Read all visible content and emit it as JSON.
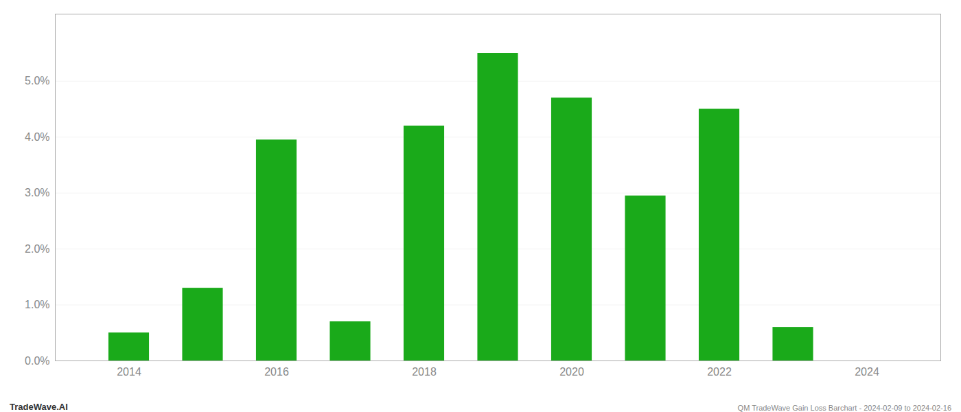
{
  "chart_data": {
    "type": "bar",
    "x": [
      2014,
      2015,
      2016,
      2017,
      2018,
      2019,
      2020,
      2021,
      2022,
      2023
    ],
    "values": [
      0.005,
      0.013,
      0.0395,
      0.007,
      0.042,
      0.055,
      0.047,
      0.0295,
      0.045,
      0.006
    ],
    "color": "#1aaa1a",
    "xlim": [
      2013,
      2025
    ],
    "xticks": [
      2014,
      2016,
      2018,
      2020,
      2022,
      2024
    ],
    "ylim": [
      0,
      0.062
    ],
    "yticks": [
      {
        "value": 0.0,
        "label": "0.0%"
      },
      {
        "value": 0.01,
        "label": "1.0%"
      },
      {
        "value": 0.02,
        "label": "2.0%"
      },
      {
        "value": 0.03,
        "label": "3.0%"
      },
      {
        "value": 0.04,
        "label": "4.0%"
      },
      {
        "value": 0.05,
        "label": "5.0%"
      }
    ],
    "grid": true,
    "annotations": [
      "TradeWave.AI",
      "QM TradeWave Gain Loss Barchart - 2024-02-09 to 2024-02-16"
    ]
  }
}
